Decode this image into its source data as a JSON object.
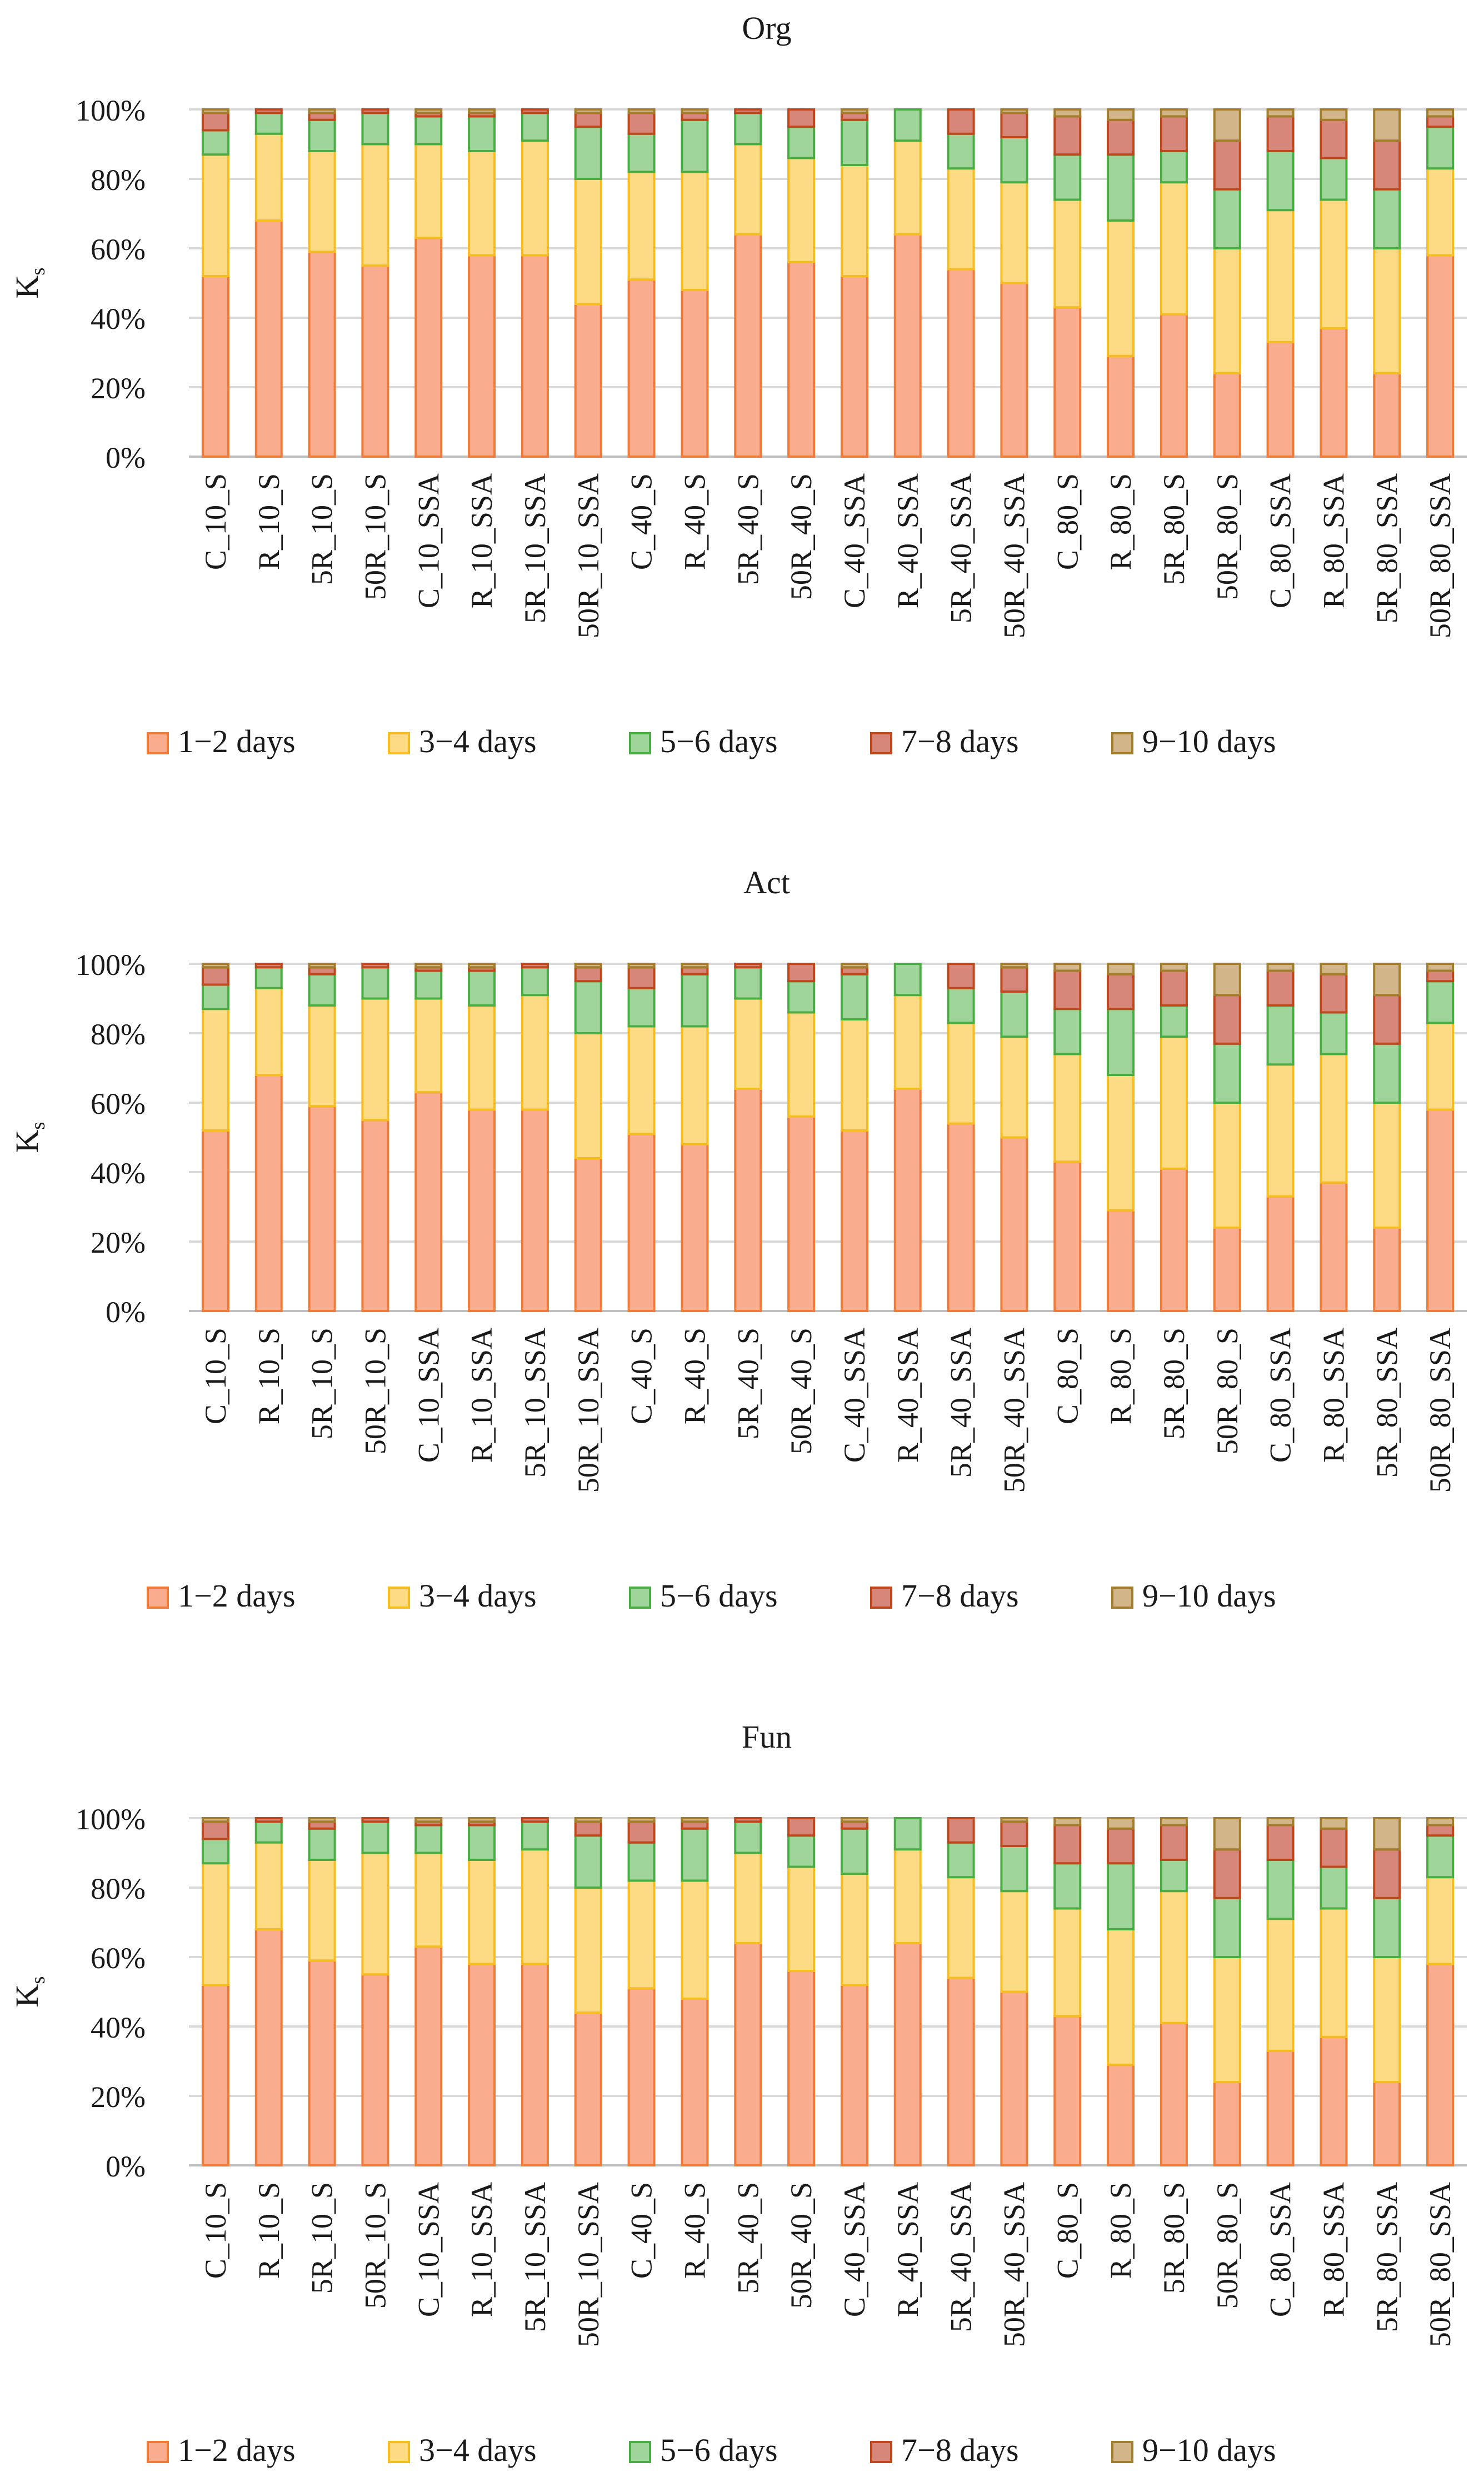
{
  "chart_data": [
    {
      "type": "bar",
      "stacked": true,
      "title": "Org",
      "ylabel": "Ks",
      "ylim": [
        0,
        100
      ],
      "y_unit": "%",
      "yticks": [
        0,
        20,
        40,
        60,
        80,
        100
      ],
      "grid": true,
      "legend": "bottom",
      "categories": [
        "C_10_S",
        "R_10_S",
        "5R_10_S",
        "50R_10_S",
        "C_10_SSA",
        "R_10_SSA",
        "5R_10_SSA",
        "50R_10_SSA",
        "C_40_S",
        "R_40_S",
        "5R_40_S",
        "50R_40_S",
        "C_40_SSA",
        "R_40_SSA",
        "5R_40_SSA",
        "50R_40_SSA",
        "C_80_S",
        "R_80_S",
        "5R_80_S",
        "50R_80_S",
        "C_80_SSA",
        "R_80_SSA",
        "5R_80_SSA",
        "50R_80_SSA"
      ],
      "series": [
        {
          "name": "1−2 days",
          "values": [
            52,
            68,
            59,
            55,
            63,
            58,
            58,
            44,
            51,
            48,
            64,
            56,
            52,
            64,
            54,
            50,
            43,
            29,
            41,
            24,
            33,
            37,
            24,
            58
          ]
        },
        {
          "name": "3−4 days",
          "values": [
            35,
            25,
            29,
            35,
            27,
            30,
            33,
            36,
            31,
            34,
            26,
            30,
            32,
            27,
            29,
            29,
            31,
            39,
            38,
            36,
            38,
            37,
            36,
            25
          ]
        },
        {
          "name": "5−6 days",
          "values": [
            7,
            6,
            9,
            9,
            8,
            10,
            8,
            15,
            11,
            15,
            9,
            9,
            13,
            9,
            10,
            13,
            13,
            19,
            9,
            17,
            17,
            12,
            17,
            12
          ]
        },
        {
          "name": "7−8 days",
          "values": [
            5,
            1,
            2,
            1,
            1,
            1,
            1,
            4,
            6,
            2,
            1,
            5,
            2,
            0,
            7,
            7,
            11,
            10,
            10,
            14,
            10,
            11,
            14,
            3
          ]
        },
        {
          "name": "9−10 days",
          "values": [
            1,
            0,
            1,
            0,
            1,
            1,
            0,
            1,
            1,
            1,
            0,
            0,
            1,
            0,
            0,
            1,
            2,
            3,
            2,
            9,
            2,
            3,
            9,
            2
          ]
        }
      ]
    },
    {
      "type": "bar",
      "stacked": true,
      "title": "Act",
      "ylabel": "Ks",
      "ylim": [
        0,
        100
      ],
      "y_unit": "%",
      "yticks": [
        0,
        20,
        40,
        60,
        80,
        100
      ],
      "grid": true,
      "legend": "bottom",
      "categories": [
        "C_10_S",
        "R_10_S",
        "5R_10_S",
        "50R_10_S",
        "C_10_SSA",
        "R_10_SSA",
        "5R_10_SSA",
        "50R_10_SSA",
        "C_40_S",
        "R_40_S",
        "5R_40_S",
        "50R_40_S",
        "C_40_SSA",
        "R_40_SSA",
        "5R_40_SSA",
        "50R_40_SSA",
        "C_80_S",
        "R_80_S",
        "5R_80_S",
        "50R_80_S",
        "C_80_SSA",
        "R_80_SSA",
        "5R_80_SSA",
        "50R_80_SSA"
      ],
      "series": [
        {
          "name": "1−2 days",
          "values": [
            52,
            68,
            59,
            55,
            63,
            58,
            58,
            44,
            51,
            48,
            64,
            56,
            52,
            64,
            54,
            50,
            43,
            29,
            41,
            24,
            33,
            37,
            24,
            58
          ]
        },
        {
          "name": "3−4 days",
          "values": [
            35,
            25,
            29,
            35,
            27,
            30,
            33,
            36,
            31,
            34,
            26,
            30,
            32,
            27,
            29,
            29,
            31,
            39,
            38,
            36,
            38,
            37,
            36,
            25
          ]
        },
        {
          "name": "5−6 days",
          "values": [
            7,
            6,
            9,
            9,
            8,
            10,
            8,
            15,
            11,
            15,
            9,
            9,
            13,
            9,
            10,
            13,
            13,
            19,
            9,
            17,
            17,
            12,
            17,
            12
          ]
        },
        {
          "name": "7−8 days",
          "values": [
            5,
            1,
            2,
            1,
            1,
            1,
            1,
            4,
            6,
            2,
            1,
            5,
            2,
            0,
            7,
            7,
            11,
            10,
            10,
            14,
            10,
            11,
            14,
            3
          ]
        },
        {
          "name": "9−10 days",
          "values": [
            1,
            0,
            1,
            0,
            1,
            1,
            0,
            1,
            1,
            1,
            0,
            0,
            1,
            0,
            0,
            1,
            2,
            3,
            2,
            9,
            2,
            3,
            9,
            2
          ]
        }
      ]
    },
    {
      "type": "bar",
      "stacked": true,
      "title": "Fun",
      "ylabel": "Ks",
      "ylim": [
        0,
        100
      ],
      "y_unit": "%",
      "yticks": [
        0,
        20,
        40,
        60,
        80,
        100
      ],
      "grid": true,
      "legend": "bottom",
      "categories": [
        "C_10_S",
        "R_10_S",
        "5R_10_S",
        "50R_10_S",
        "C_10_SSA",
        "R_10_SSA",
        "5R_10_SSA",
        "50R_10_SSA",
        "C_40_S",
        "R_40_S",
        "5R_40_S",
        "50R_40_S",
        "C_40_SSA",
        "R_40_SSA",
        "5R_40_SSA",
        "50R_40_SSA",
        "C_80_S",
        "R_80_S",
        "5R_80_S",
        "50R_80_S",
        "C_80_SSA",
        "R_80_SSA",
        "5R_80_SSA",
        "50R_80_SSA"
      ],
      "series": [
        {
          "name": "1−2 days",
          "values": [
            52,
            68,
            59,
            55,
            63,
            58,
            58,
            44,
            51,
            48,
            64,
            56,
            52,
            64,
            54,
            50,
            43,
            29,
            41,
            24,
            33,
            37,
            24,
            58
          ]
        },
        {
          "name": "3−4 days",
          "values": [
            35,
            25,
            29,
            35,
            27,
            30,
            33,
            36,
            31,
            34,
            26,
            30,
            32,
            27,
            29,
            29,
            31,
            39,
            38,
            36,
            38,
            37,
            36,
            25
          ]
        },
        {
          "name": "5−6 days",
          "values": [
            7,
            6,
            9,
            9,
            8,
            10,
            8,
            15,
            11,
            15,
            9,
            9,
            13,
            9,
            10,
            13,
            13,
            19,
            9,
            17,
            17,
            12,
            17,
            12
          ]
        },
        {
          "name": "7−8 days",
          "values": [
            5,
            1,
            2,
            1,
            1,
            1,
            1,
            4,
            6,
            2,
            1,
            5,
            2,
            0,
            7,
            7,
            11,
            10,
            10,
            14,
            10,
            11,
            14,
            3
          ]
        },
        {
          "name": "9−10 days",
          "values": [
            1,
            0,
            1,
            0,
            1,
            1,
            0,
            1,
            1,
            1,
            0,
            0,
            1,
            0,
            0,
            1,
            2,
            3,
            2,
            9,
            2,
            3,
            9,
            2
          ]
        }
      ]
    }
  ],
  "style": {
    "series_fill": [
      "#f9ad8e",
      "#fddb84",
      "#9fd49a",
      "#d6877a",
      "#d3b58a"
    ],
    "series_stroke": [
      "#f07a38",
      "#f5bd1f",
      "#4aad44",
      "#c0461c",
      "#a27d2c"
    ],
    "grid_color": "#d9d9d9",
    "axis_color": "#bfbfbf"
  }
}
